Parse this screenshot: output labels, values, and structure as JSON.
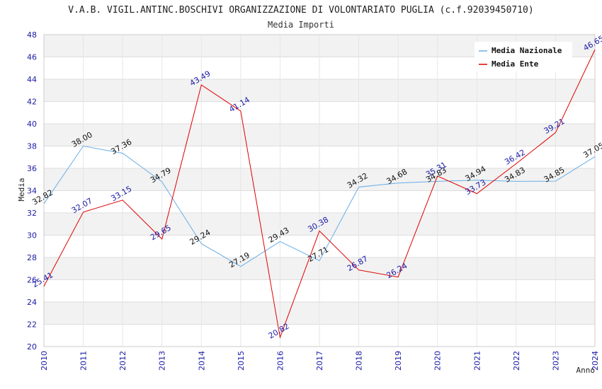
{
  "chart_data": {
    "type": "line",
    "title": "V.A.B. VIGIL.ANTINC.BOSCHIVI ORGANIZZAZIONE DI VOLONTARIATO PUGLIA (c.f.92039450710)",
    "subtitle": "Media Importi",
    "xlabel": "Anno",
    "ylabel": "Media",
    "ylim": [
      20,
      48
    ],
    "yticks": [
      "20",
      "22",
      "24",
      "26",
      "28",
      "30",
      "32",
      "34",
      "36",
      "38",
      "40",
      "42",
      "44",
      "46",
      "48"
    ],
    "x": [
      "2010",
      "2011",
      "2012",
      "2013",
      "2014",
      "2015",
      "2016",
      "2017",
      "2018",
      "2019",
      "2020",
      "2021",
      "2022",
      "2023",
      "2024"
    ],
    "legend_position": "top-right",
    "series": [
      {
        "name": "Media Nazionale",
        "color": "#6aaee6",
        "values": [
          32.82,
          38.0,
          37.36,
          34.79,
          29.24,
          27.19,
          29.43,
          27.71,
          34.32,
          34.68,
          34.83,
          34.94,
          34.83,
          34.85,
          37.05
        ],
        "labels": [
          "32.82",
          "38.00",
          "37.36",
          "34.79",
          "29.24",
          "27.19",
          "29.43",
          "27.71",
          "34.32",
          "34.68",
          "34.83",
          "34.94",
          "34.83",
          "34.85",
          "37.05"
        ]
      },
      {
        "name": "Media Ente",
        "color": "#e00000",
        "values": [
          25.41,
          32.07,
          33.15,
          29.65,
          43.49,
          41.14,
          20.82,
          30.38,
          26.87,
          26.24,
          35.31,
          33.73,
          36.42,
          39.21,
          46.65
        ],
        "labels": [
          "25.41",
          "32.07",
          "33.15",
          "29.65",
          "43.49",
          "41.14",
          "20.82",
          "30.38",
          "26.87",
          "26.24",
          "35.31",
          "33.73",
          "36.42",
          "39.21",
          "46.65"
        ]
      }
    ]
  }
}
